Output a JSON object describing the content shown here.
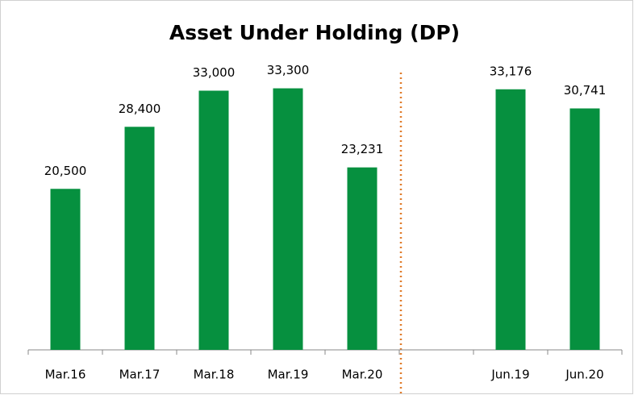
{
  "chart_data": {
    "type": "bar",
    "title": "Asset Under Holding (DP)",
    "categories": [
      "Mar.16",
      "Mar.17",
      "Mar.18",
      "Mar.19",
      "Mar.20",
      null,
      "Jun.19",
      "Jun.20"
    ],
    "values": [
      20500,
      28400,
      33000,
      33300,
      23231,
      null,
      33176,
      30741
    ],
    "value_labels": [
      "20,500",
      "28,400",
      "33,000",
      "33,300",
      "23,231",
      null,
      "33,176",
      "30,741"
    ],
    "color": "#06903f",
    "ylim": [
      0,
      35000
    ]
  }
}
